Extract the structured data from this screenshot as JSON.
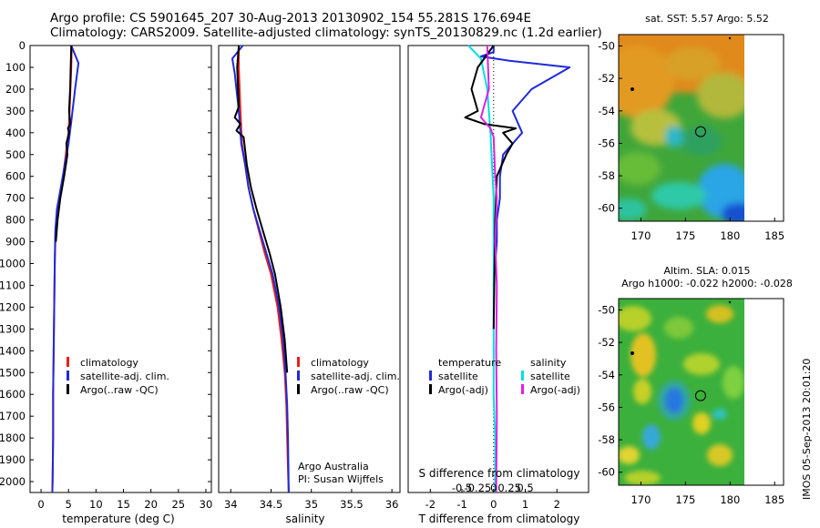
{
  "header": {
    "line1": "Argo profile: CS 5901645_207 30-Aug-2013 20130902_154 55.281S 176.694E",
    "line2": "Climatology: CARS2009. Satellite-adjusted climatology: synTS_20130829.nc (1.2d earlier)"
  },
  "colors": {
    "climatology": "#e8201a",
    "satellite": "#1f2ad8",
    "argo": "#000000",
    "satellite_s": "#00e0e0",
    "argo_adj": "#e020e0"
  },
  "chart_data": [
    {
      "type": "line",
      "id": "temperature",
      "xlabel": "temperature (deg C)",
      "ylabel": "",
      "xlim": [
        -2,
        31
      ],
      "ylim": [
        2050,
        0
      ],
      "xticks": [
        "0",
        "5",
        "10",
        "15",
        "20",
        "25",
        "30"
      ],
      "yticks": [
        "0",
        "100",
        "200",
        "300",
        "400",
        "500",
        "600",
        "700",
        "800",
        "900",
        "1000",
        "1100",
        "1200",
        "1300",
        "1400",
        "1500",
        "1600",
        "1700",
        "1800",
        "1900",
        "2000"
      ],
      "legend": [
        "climatology",
        "satellite-adj. clim.",
        "Argo(..raw -QC)"
      ],
      "series": [
        {
          "name": "climatology",
          "color": "#e8201a",
          "x": [
            5.6,
            5.5,
            5.2,
            5.0,
            4.5,
            4.0,
            3.3,
            2.8,
            2.6,
            2.5,
            2.4,
            2.3,
            2.2,
            2.2,
            2.15,
            2.1,
            2.05
          ],
          "y": [
            0,
            100,
            300,
            400,
            500,
            600,
            700,
            800,
            900,
            1000,
            1200,
            1400,
            1600,
            1800,
            1900,
            2000,
            2050
          ]
        },
        {
          "name": "satellite-adj. clim.",
          "color": "#1f2ad8",
          "x": [
            5.5,
            6.8,
            6.2,
            5.5,
            5.0,
            4.3,
            3.6,
            2.9,
            2.6,
            2.5,
            2.4,
            2.3,
            2.2,
            2.2,
            2.15,
            2.1,
            2.05
          ],
          "y": [
            0,
            80,
            200,
            350,
            450,
            550,
            650,
            750,
            850,
            1000,
            1200,
            1400,
            1600,
            1800,
            1900,
            2000,
            2050
          ]
        },
        {
          "name": "Argo(..raw -QC)",
          "color": "#000000",
          "x": [
            5.5,
            5.4,
            5.3,
            5.1,
            5.2,
            5.3,
            4.9,
            5.1,
            4.6,
            4.8,
            4.2,
            3.5,
            3.0,
            2.7
          ],
          "y": [
            0,
            100,
            200,
            300,
            330,
            360,
            380,
            400,
            450,
            500,
            600,
            700,
            800,
            900
          ]
        }
      ]
    },
    {
      "type": "line",
      "id": "salinity",
      "xlabel": "salinity",
      "ylabel": "",
      "xlim": [
        33.85,
        36.1
      ],
      "ylim": [
        2050,
        0
      ],
      "xticks": [
        "34",
        "34.5",
        "35",
        "35.5",
        "36"
      ],
      "legend": [
        "climatology",
        "satellite-adj. clim.",
        "Argo(..raw -QC)"
      ],
      "annotation": [
        "Argo Australia",
        "PI: Susan Wijffels"
      ],
      "series": [
        {
          "name": "climatology",
          "color": "#e8201a",
          "x": [
            34.1,
            34.1,
            34.12,
            34.14,
            34.18,
            34.22,
            34.28,
            34.35,
            34.42,
            34.5,
            34.58,
            34.63,
            34.67,
            34.69,
            34.7,
            34.71,
            34.72
          ],
          "y": [
            0,
            100,
            300,
            450,
            550,
            650,
            750,
            850,
            950,
            1050,
            1200,
            1350,
            1500,
            1650,
            1800,
            1950,
            2050
          ]
        },
        {
          "name": "satellite-adj. clim.",
          "color": "#1f2ad8",
          "x": [
            34.15,
            34.02,
            34.05,
            34.1,
            34.13,
            34.18,
            34.22,
            34.28,
            34.36,
            34.44,
            34.52,
            34.6,
            34.65,
            34.68,
            34.7,
            34.71,
            34.72
          ],
          "y": [
            0,
            60,
            130,
            300,
            450,
            550,
            650,
            750,
            850,
            950,
            1050,
            1200,
            1350,
            1500,
            1650,
            1800,
            2050
          ]
        },
        {
          "name": "Argo(..raw -QC)",
          "color": "#000000",
          "x": [
            34.1,
            34.08,
            34.1,
            34.05,
            34.12,
            34.07,
            34.16,
            34.2,
            34.25,
            34.32,
            34.4,
            34.48,
            34.55,
            34.62,
            34.67,
            34.7
          ],
          "y": [
            0,
            100,
            280,
            330,
            360,
            390,
            420,
            550,
            650,
            750,
            850,
            950,
            1050,
            1200,
            1350,
            1500
          ]
        }
      ]
    },
    {
      "type": "line",
      "id": "difference",
      "xlabel": "T difference from climatology",
      "xlabel_top": "S difference from climatology",
      "xlim": [
        -2.7,
        3
      ],
      "ylim": [
        2050,
        0
      ],
      "xticks": [
        "-2",
        "-1",
        "0",
        "1",
        "2"
      ],
      "xticks_s": [
        "-0.5",
        "-0.25",
        "0",
        "0.25",
        "0.5"
      ],
      "legend": {
        "temperature": [
          "temperature",
          "satellite",
          "Argo(-adj)"
        ],
        "salinity": [
          "salinity",
          "satellite",
          "Argo(-adj)"
        ]
      },
      "series": [
        {
          "name": "satellite",
          "color": "#1f2ad8",
          "x": [
            0,
            0,
            -0.4,
            0.5,
            2.4,
            1.2,
            0.6,
            0.9,
            0.3,
            0.2,
            0.2,
            0.1,
            0.1,
            0.05,
            0.0
          ],
          "y": [
            0,
            30,
            50,
            70,
            100,
            200,
            300,
            400,
            500,
            600,
            700,
            800,
            900,
            1000,
            1100
          ]
        },
        {
          "name": "satellite-s",
          "color": "#00e0e0",
          "x": [
            -0.8,
            -0.4,
            -0.2,
            -0.1,
            0.0,
            0.0,
            0.0,
            0.0,
            0.05,
            0.05,
            0.05
          ],
          "y": [
            0,
            60,
            200,
            400,
            700,
            1000,
            1300,
            1600,
            1800,
            2000,
            2050
          ]
        },
        {
          "name": "Argo(-adj)-T",
          "color": "#000000",
          "x": [
            0.0,
            -0.5,
            -0.7,
            -0.5,
            -0.9,
            -0.3,
            0.7,
            0.3,
            0.6,
            0.4,
            0.1,
            0.05,
            0.0
          ],
          "y": [
            0,
            100,
            200,
            300,
            330,
            360,
            380,
            400,
            450,
            500,
            600,
            800,
            1300
          ]
        },
        {
          "name": "Argo(-adj)-S",
          "color": "#e020e0",
          "x": [
            -0.2,
            -0.15,
            -0.4,
            -0.1,
            0.0,
            0.05,
            0.1,
            0.05,
            0.1,
            0.08,
            0.1,
            0.08
          ],
          "y": [
            0,
            200,
            330,
            380,
            420,
            600,
            700,
            900,
            1100,
            1400,
            1700,
            2050
          ]
        }
      ]
    },
    {
      "type": "heatmap",
      "id": "sst-map",
      "title": "sat. SST: 5.57 Argo: 5.52",
      "xlim": [
        167.5,
        186
      ],
      "ylim": [
        -60.8,
        -49.3
      ],
      "xticks": [
        "170",
        "175",
        "180",
        "185"
      ],
      "yticks": [
        "-50",
        "-52",
        "-54",
        "-56",
        "-58",
        "-60"
      ],
      "marker": {
        "lon": 176.694,
        "lat": -55.281
      }
    },
    {
      "type": "heatmap",
      "id": "sla-map",
      "title": "Altim. SLA: 0.015",
      "subtitle": "Argo h1000: -0.022 h2000: -0.028",
      "xlim": [
        167.5,
        186
      ],
      "ylim": [
        -60.8,
        -49.3
      ],
      "xticks": [
        "170",
        "175",
        "180",
        "185"
      ],
      "yticks": [
        "-50",
        "-52",
        "-54",
        "-56",
        "-58",
        "-60"
      ],
      "marker": {
        "lon": 176.694,
        "lat": -55.281
      }
    }
  ],
  "footer": {
    "stamp": "IMOS 05-Sep-2013 20:01:20"
  }
}
